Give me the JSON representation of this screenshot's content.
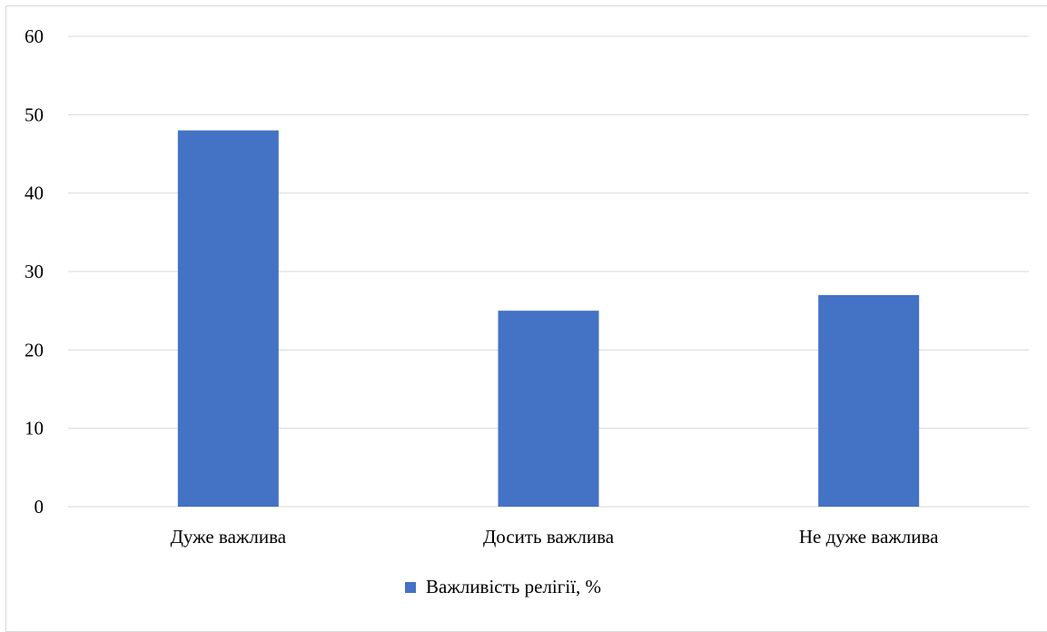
{
  "chart_data": {
    "type": "bar",
    "title": "",
    "xlabel": "",
    "ylabel": "",
    "categories": [
      "Дуже важлива",
      "Досить важлива",
      "Не дуже важлива"
    ],
    "series": [
      {
        "name": "Важливість релігії, %",
        "values": [
          48,
          25,
          27
        ],
        "color": "#4472c4"
      }
    ],
    "ylim": [
      0,
      60
    ],
    "yticks": [
      0,
      10,
      20,
      30,
      40,
      50,
      60
    ],
    "grid": true,
    "gridColor": "#d9d9d9",
    "legend_position": "bottom"
  }
}
